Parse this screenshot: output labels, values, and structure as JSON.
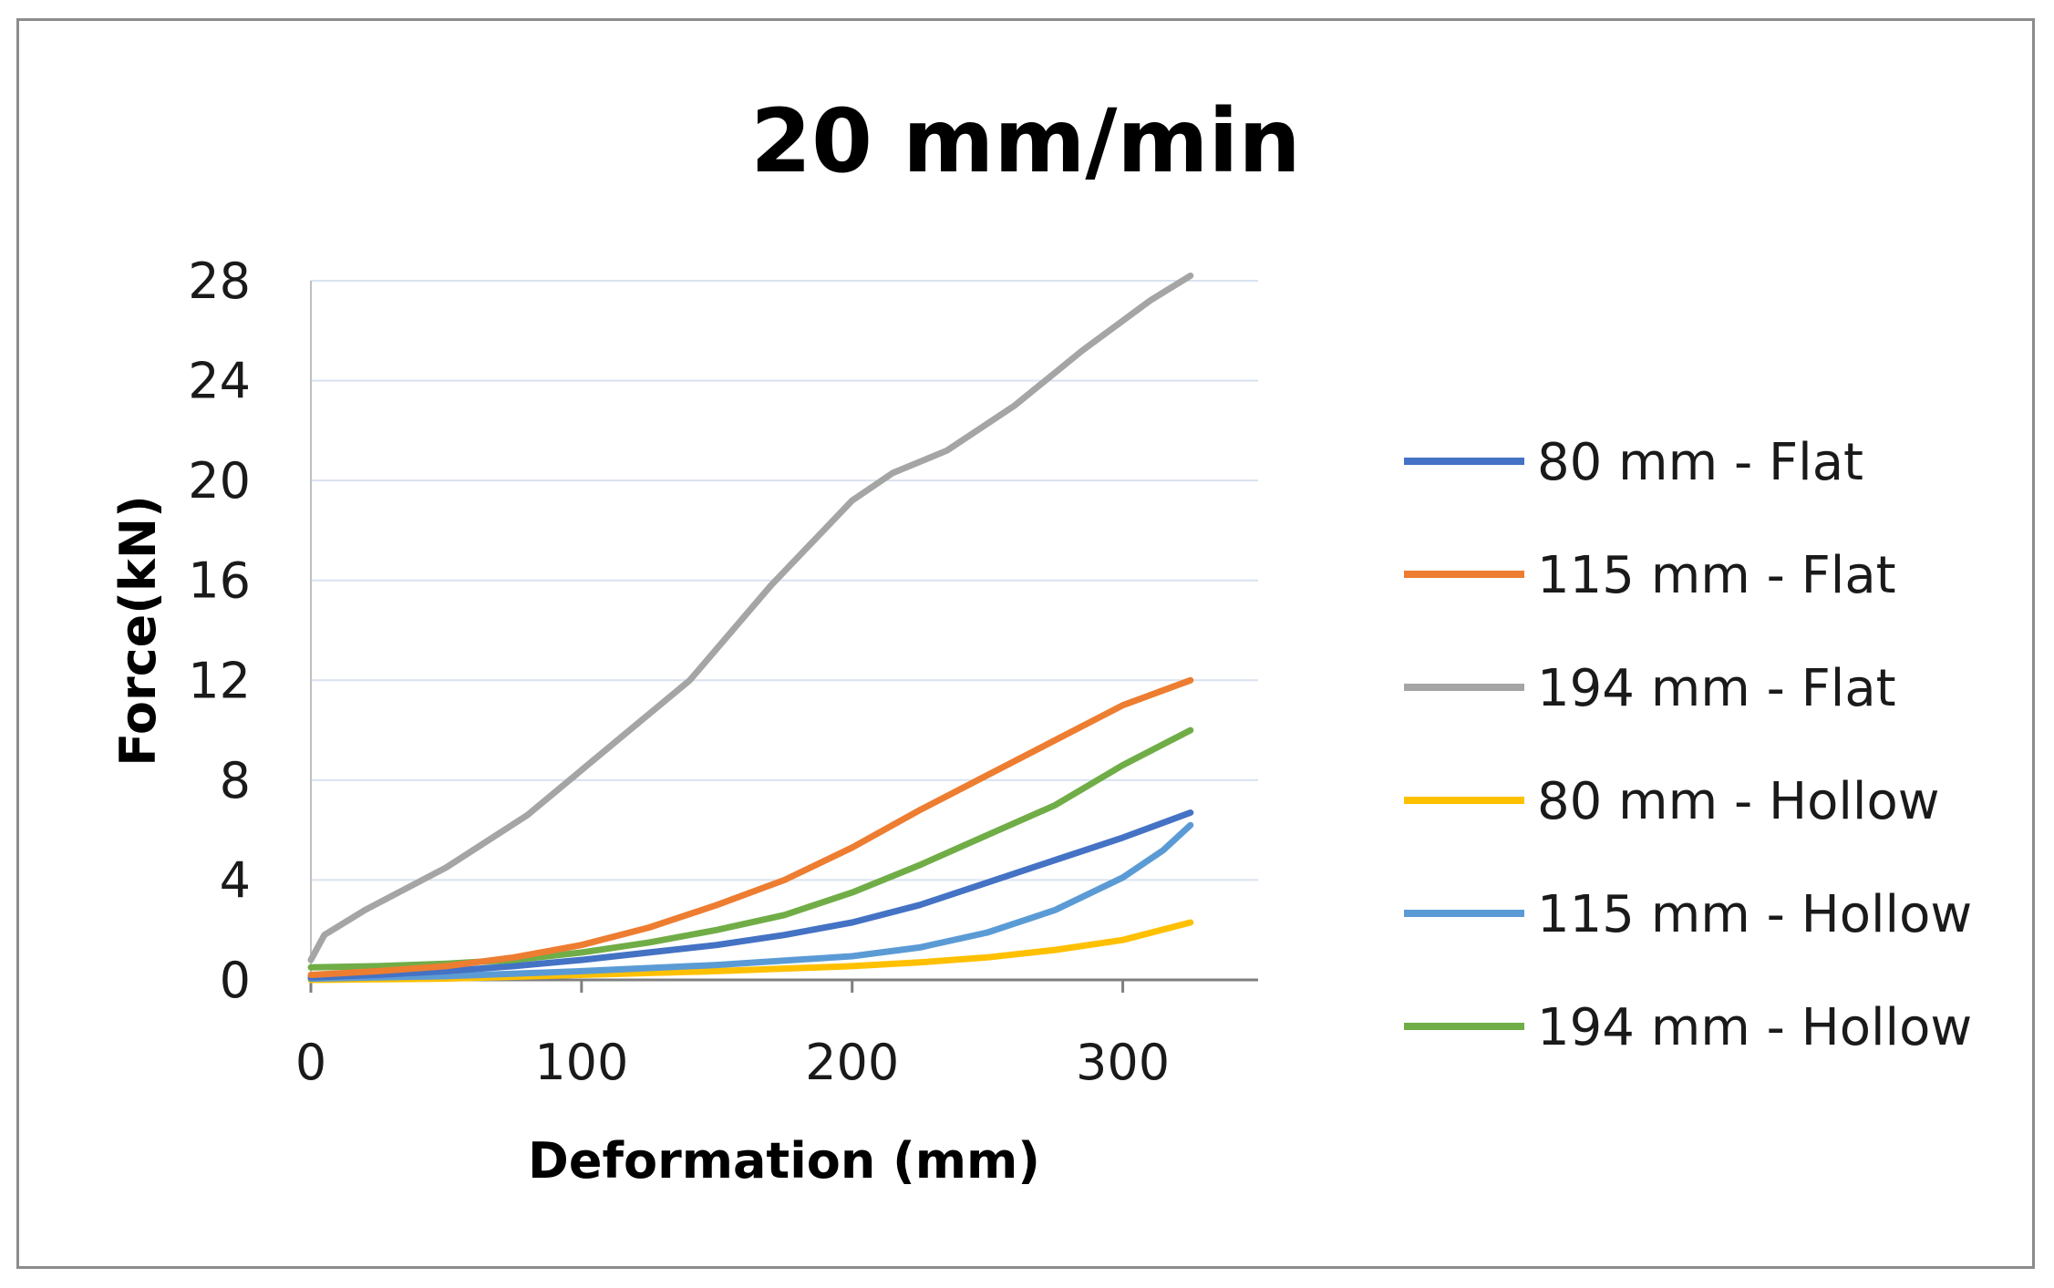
{
  "chart_data": {
    "type": "line",
    "title": "20 mm/min",
    "xlabel": "Deformation (mm)",
    "ylabel": "Force(kN)",
    "xlim": [
      0,
      350
    ],
    "ylim": [
      0,
      28
    ],
    "x_ticks": [
      0,
      100,
      200,
      300
    ],
    "y_ticks": [
      0,
      4,
      8,
      12,
      16,
      20,
      24,
      28
    ],
    "grid": "horizontal",
    "legend": "right",
    "series": [
      {
        "name": "80 mm - Flat",
        "color": "#4472C4",
        "x": [
          0,
          25,
          50,
          75,
          100,
          125,
          150,
          175,
          200,
          225,
          250,
          275,
          300,
          325
        ],
        "y": [
          0.1,
          0.2,
          0.35,
          0.55,
          0.8,
          1.1,
          1.4,
          1.8,
          2.3,
          3.0,
          3.9,
          4.8,
          5.7,
          6.7
        ]
      },
      {
        "name": "115 mm - Flat",
        "color": "#ED7D31",
        "x": [
          0,
          25,
          50,
          75,
          100,
          125,
          150,
          175,
          200,
          225,
          250,
          275,
          300,
          325
        ],
        "y": [
          0.2,
          0.35,
          0.55,
          0.9,
          1.4,
          2.1,
          3.0,
          4.0,
          5.3,
          6.8,
          8.2,
          9.6,
          11.0,
          12.0
        ]
      },
      {
        "name": "194 mm - Flat",
        "color": "#A5A5A5",
        "x": [
          0,
          5,
          20,
          50,
          80,
          110,
          140,
          170,
          200,
          215,
          235,
          260,
          285,
          310,
          325
        ],
        "y": [
          0.8,
          1.8,
          2.8,
          4.5,
          6.6,
          9.3,
          12.0,
          15.8,
          19.2,
          20.3,
          21.2,
          23.0,
          25.2,
          27.2,
          28.2
        ]
      },
      {
        "name": "80 mm - Hollow",
        "color": "#FFC000",
        "x": [
          0,
          50,
          100,
          150,
          200,
          225,
          250,
          275,
          300,
          325
        ],
        "y": [
          0.0,
          0.05,
          0.2,
          0.35,
          0.55,
          0.7,
          0.9,
          1.2,
          1.6,
          2.3
        ]
      },
      {
        "name": "115 mm - Hollow",
        "color": "#5B9BD5",
        "x": [
          0,
          50,
          100,
          150,
          200,
          225,
          250,
          275,
          300,
          315,
          325
        ],
        "y": [
          0.05,
          0.15,
          0.35,
          0.6,
          0.95,
          1.3,
          1.9,
          2.8,
          4.1,
          5.2,
          6.2
        ]
      },
      {
        "name": "194 mm - Hollow",
        "color": "#70AD47",
        "x": [
          0,
          25,
          50,
          75,
          100,
          125,
          150,
          175,
          200,
          225,
          250,
          275,
          300,
          325
        ],
        "y": [
          0.5,
          0.55,
          0.65,
          0.8,
          1.1,
          1.5,
          2.0,
          2.6,
          3.5,
          4.6,
          5.8,
          7.0,
          8.6,
          10.0
        ]
      }
    ]
  }
}
